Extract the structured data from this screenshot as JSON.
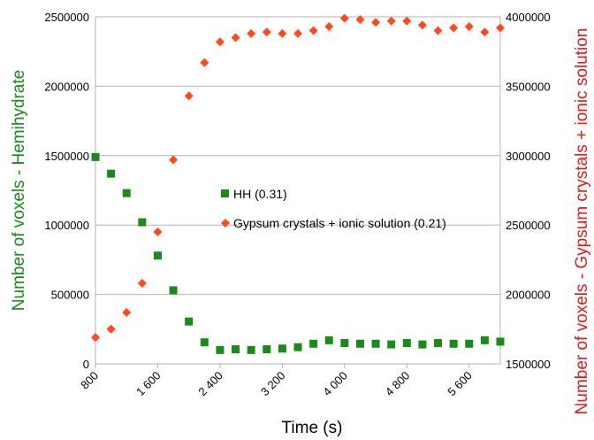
{
  "chart_data": {
    "type": "scatter",
    "xlabel": "Time (s)",
    "ylabel_left": "Number of voxels - Hemihydrate",
    "ylabel_right": "Number of voxels - Gypsum crystals + ionic solution",
    "xlim": [
      800,
      6000
    ],
    "x_ticks": [
      800,
      1600,
      2400,
      3200,
      4000,
      4800,
      5600
    ],
    "x_tick_labels": [
      "800",
      "1 600",
      "2 400",
      "3 200",
      "4 000",
      "4 800",
      "5 600"
    ],
    "ylim_left": [
      0,
      2500000
    ],
    "y_ticks_left": [
      "0",
      "500000",
      "1000000",
      "1500000",
      "2000000",
      "2500000"
    ],
    "ylim_right": [
      1500000,
      4000000
    ],
    "y_ticks_right": [
      "1500000",
      "2000000",
      "2500000",
      "3000000",
      "3500000",
      "4000000"
    ],
    "grid": "horizontal",
    "legend_placement": "center",
    "series": [
      {
        "name": "HH (0.31)",
        "axis": "left",
        "marker": "square",
        "color": "#1a8a1a",
        "x": [
          800,
          1000,
          1200,
          1400,
          1600,
          1800,
          2000,
          2200,
          2400,
          2600,
          2800,
          3000,
          3200,
          3400,
          3600,
          3800,
          4000,
          4200,
          4400,
          4600,
          4800,
          5000,
          5200,
          5400,
          5600,
          5800,
          6000
        ],
        "y": [
          1490000,
          1370000,
          1230000,
          1020000,
          780000,
          530000,
          305000,
          155000,
          100000,
          105000,
          100000,
          105000,
          110000,
          120000,
          145000,
          170000,
          150000,
          145000,
          145000,
          140000,
          150000,
          140000,
          150000,
          145000,
          145000,
          170000,
          160000
        ]
      },
      {
        "name": "Gypsum crystals + ionic solution (0.21)",
        "axis": "right",
        "marker": "diamond",
        "color": "#ff4a1c",
        "x": [
          800,
          1000,
          1200,
          1400,
          1600,
          1800,
          2000,
          2200,
          2400,
          2600,
          2800,
          3000,
          3200,
          3400,
          3600,
          3800,
          4000,
          4200,
          4400,
          4600,
          4800,
          5000,
          5200,
          5400,
          5600,
          5800,
          6000
        ],
        "y": [
          1690000,
          1750000,
          1870000,
          2080000,
          2450000,
          2970000,
          3430000,
          3670000,
          3820000,
          3850000,
          3880000,
          3890000,
          3880000,
          3880000,
          3900000,
          3930000,
          3990000,
          3980000,
          3960000,
          3970000,
          3970000,
          3940000,
          3900000,
          3920000,
          3930000,
          3890000,
          3920000
        ]
      }
    ],
    "colors": {
      "left_axis_title": "#1a8a1a",
      "right_axis_title": "#e31a1c",
      "grid": "#b3b3b3",
      "axis": "#b3b3b3"
    }
  }
}
